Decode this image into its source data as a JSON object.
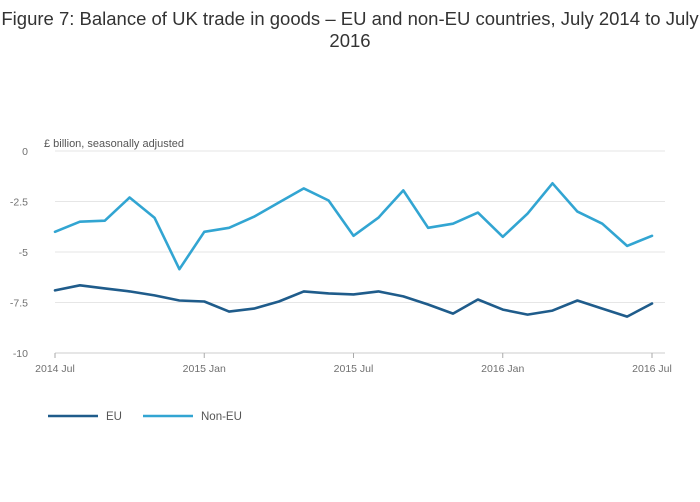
{
  "chart_data": {
    "type": "line",
    "title": "Figure 7: Balance of UK trade in goods – EU and non-EU countries, July 2014 to July 2016",
    "ylabel": "£ billion, seasonally adjusted",
    "xlabel": "",
    "ylim": [
      -10,
      0
    ],
    "yticks": [
      0,
      -2.5,
      -5,
      -7.5,
      -10
    ],
    "ytick_labels": [
      "0",
      "-2.5",
      "-5",
      "-7.5",
      "-10"
    ],
    "xtick_labels": [
      "2014 Jul",
      "2015 Jan",
      "2015 Jul",
      "2016 Jan",
      "2016 Jul"
    ],
    "xtick_positions": [
      0,
      6,
      12,
      18,
      24
    ],
    "x": [
      "2014 Jul",
      "2014 Aug",
      "2014 Sep",
      "2014 Oct",
      "2014 Nov",
      "2014 Dec",
      "2015 Jan",
      "2015 Feb",
      "2015 Mar",
      "2015 Apr",
      "2015 May",
      "2015 Jun",
      "2015 Jul",
      "2015 Aug",
      "2015 Sep",
      "2015 Oct",
      "2015 Nov",
      "2015 Dec",
      "2016 Jan",
      "2016 Feb",
      "2016 Mar",
      "2016 Apr",
      "2016 May",
      "2016 Jun",
      "2016 Jul"
    ],
    "series": [
      {
        "name": "EU",
        "color": "#1f5c8b",
        "values": [
          -6.9,
          -6.65,
          -6.8,
          -6.95,
          -7.15,
          -7.4,
          -7.45,
          -7.95,
          -7.8,
          -7.45,
          -6.95,
          -7.05,
          -7.1,
          -6.95,
          -7.2,
          -7.6,
          -8.05,
          -7.35,
          -7.85,
          -8.1,
          -7.9,
          -7.4,
          -7.8,
          -8.2,
          -7.55
        ]
      },
      {
        "name": "Non-EU",
        "color": "#32a5d2",
        "values": [
          -4.0,
          -3.5,
          -3.45,
          -2.3,
          -3.3,
          -5.85,
          -4.0,
          -3.8,
          -3.25,
          -2.55,
          -1.85,
          -2.45,
          -4.2,
          -3.3,
          -1.95,
          -3.8,
          -3.6,
          -3.05,
          -4.25,
          -3.1,
          -1.6,
          -3.0,
          -3.6,
          -4.7,
          -4.2
        ]
      }
    ],
    "legend_position": "bottom-left"
  }
}
